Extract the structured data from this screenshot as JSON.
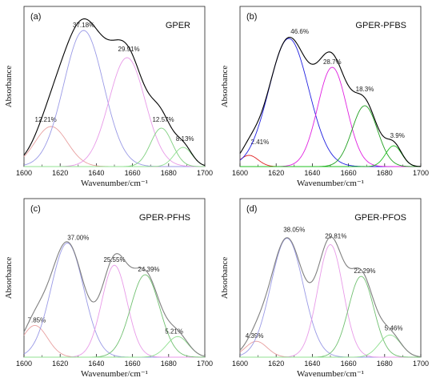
{
  "chart_data": [
    {
      "type": "line",
      "panel": "(a)",
      "title": "GPER",
      "xlabel": "Wavenumber/cm⁻¹",
      "ylabel": "Absorbance",
      "xlim": [
        1600,
        1700
      ],
      "xticks": [
        "1600",
        "1620",
        "1640",
        "1660",
        "1680",
        "1700"
      ],
      "ylim": [
        0,
        1.0
      ],
      "envelope_color": "#000000",
      "series": [
        {
          "label": "12.21%",
          "center": 1615,
          "height": 0.25,
          "width": 9,
          "color": "#e8a0a0",
          "label_x": 1606,
          "label_y": 0.28
        },
        {
          "label": "37.18%",
          "center": 1633,
          "height": 0.85,
          "width": 11,
          "color": "#9a9ae6",
          "label_x": 1627,
          "label_y": 0.87
        },
        {
          "label": "29.91%",
          "center": 1657,
          "height": 0.68,
          "width": 10,
          "color": "#e89ae8",
          "label_x": 1652,
          "label_y": 0.72
        },
        {
          "label": "12.57%",
          "center": 1676,
          "height": 0.24,
          "width": 6,
          "color": "#80d080",
          "label_x": 1671,
          "label_y": 0.28
        },
        {
          "label": "8.13%",
          "center": 1688,
          "height": 0.12,
          "width": 5,
          "color": "#90e090",
          "label_x": 1684,
          "label_y": 0.16
        }
      ]
    },
    {
      "type": "line",
      "panel": "(b)",
      "title": "GPER-PFBS",
      "xlabel": "Wavenumber/cm⁻¹",
      "ylabel": "Absorbance",
      "xlim": [
        1600,
        1700
      ],
      "xticks": [
        "1600",
        "1620",
        "1640",
        "1660",
        "1680",
        "1700"
      ],
      "ylim": [
        0,
        1.0
      ],
      "envelope_color": "#000000",
      "series": [
        {
          "label": "2.41%",
          "center": 1605,
          "height": 0.07,
          "width": 5,
          "color": "#e02020",
          "label_x": 1606,
          "label_y": 0.14
        },
        {
          "label": "46.6%",
          "center": 1627,
          "height": 0.8,
          "width": 11,
          "color": "#2020e0",
          "label_x": 1628,
          "label_y": 0.83
        },
        {
          "label": "28.7%",
          "center": 1651,
          "height": 0.62,
          "width": 8,
          "color": "#e020e0",
          "label_x": 1646,
          "label_y": 0.64
        },
        {
          "label": "18.3%",
          "center": 1669,
          "height": 0.38,
          "width": 7,
          "color": "#20a020",
          "label_x": 1664,
          "label_y": 0.47
        },
        {
          "label": "3.9%",
          "center": 1685,
          "height": 0.13,
          "width": 4.5,
          "color": "#20c020",
          "label_x": 1683,
          "label_y": 0.18
        }
      ]
    },
    {
      "type": "line",
      "panel": "(c)",
      "title": "GPER-PFHS",
      "xlabel": "Wavenumber/cm⁻¹",
      "ylabel": "Absorbance",
      "xlim": [
        1600,
        1700
      ],
      "xticks": [
        "1600",
        "1620",
        "1640",
        "1660",
        "1680",
        "1700"
      ],
      "ylim": [
        0,
        1.0
      ],
      "envelope_color": "#808080",
      "series": [
        {
          "label": "7.85%",
          "center": 1606,
          "height": 0.2,
          "width": 7,
          "color": "#e8a0a0",
          "label_x": 1602,
          "label_y": 0.22
        },
        {
          "label": "37.00%",
          "center": 1624,
          "height": 0.72,
          "width": 9,
          "color": "#9a9ae6",
          "label_x": 1624,
          "label_y": 0.74
        },
        {
          "label": "25.55%",
          "center": 1650,
          "height": 0.58,
          "width": 7,
          "color": "#e89ae8",
          "label_x": 1644,
          "label_y": 0.6
        },
        {
          "label": "24.39%",
          "center": 1667,
          "height": 0.52,
          "width": 8,
          "color": "#70c070",
          "label_x": 1663,
          "label_y": 0.54
        },
        {
          "label": "5.21%",
          "center": 1685,
          "height": 0.13,
          "width": 6,
          "color": "#90e090",
          "label_x": 1678,
          "label_y": 0.15
        }
      ]
    },
    {
      "type": "line",
      "panel": "(d)",
      "title": "GPER-PFOS",
      "xlabel": "Wavenumber/cm⁻¹",
      "ylabel": "Absorbance",
      "xlim": [
        1600,
        1700
      ],
      "xticks": [
        "1600",
        "1620",
        "1640",
        "1660",
        "1680",
        "1700"
      ],
      "ylim": [
        0,
        1.0
      ],
      "envelope_color": "#808080",
      "series": [
        {
          "label": "4.39%",
          "center": 1609,
          "height": 0.1,
          "width": 6,
          "color": "#e8a0a0",
          "label_x": 1603,
          "label_y": 0.12
        },
        {
          "label": "38.05%",
          "center": 1626,
          "height": 0.75,
          "width": 9,
          "color": "#9a9ae6",
          "label_x": 1624,
          "label_y": 0.79
        },
        {
          "label": "29.81%",
          "center": 1650,
          "height": 0.71,
          "width": 7,
          "color": "#e89ae8",
          "label_x": 1647,
          "label_y": 0.75
        },
        {
          "label": "22.29%",
          "center": 1667,
          "height": 0.51,
          "width": 7,
          "color": "#70c070",
          "label_x": 1663,
          "label_y": 0.53
        },
        {
          "label": "5.46%",
          "center": 1683,
          "height": 0.14,
          "width": 6,
          "color": "#90e090",
          "label_x": 1680,
          "label_y": 0.17
        }
      ]
    }
  ]
}
